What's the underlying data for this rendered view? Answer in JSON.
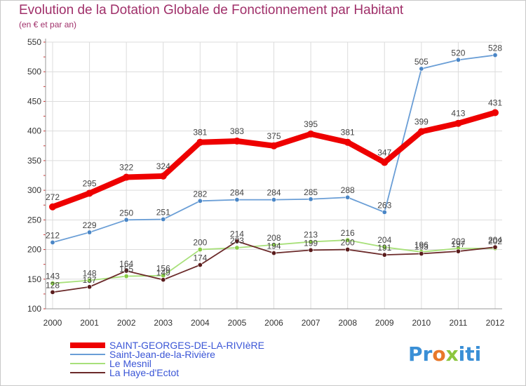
{
  "title": "Evolution de la Dotation Globale de Fonctionnement par Habitant",
  "subtitle": "(en € et par an)",
  "logo": {
    "text": "Proxiti",
    "parts": [
      "Pr",
      "o",
      "x",
      "iti"
    ]
  },
  "colors": {
    "title": "#a0306a",
    "grid": "#dcdcdc",
    "axis_text": "#333333",
    "label_text": "#444444"
  },
  "chart_data": {
    "type": "line",
    "title": "Evolution de la Dotation Globale de Fonctionnement par Habitant",
    "subtitle": "(en € et par an)",
    "xlabel": "",
    "ylabel": "",
    "x": [
      "2000",
      "2001",
      "2002",
      "2003",
      "2004",
      "2005",
      "2006",
      "2007",
      "2008",
      "2009",
      "2010",
      "2011",
      "2012"
    ],
    "ylim": [
      100,
      550
    ],
    "yticks": [
      100,
      150,
      200,
      250,
      300,
      350,
      400,
      450,
      500,
      550
    ],
    "grid": true,
    "legend_position": "bottom-left",
    "series": [
      {
        "name": "SAINT-GEORGES-DE-LA-RIVIèRE",
        "color": "#ee0000",
        "marker_color": "#ee0000",
        "width": "thick",
        "values": [
          272,
          295,
          322,
          324,
          381,
          383,
          375,
          395,
          381,
          347,
          399,
          413,
          431
        ]
      },
      {
        "name": "Saint-Jean-de-la-Rivière",
        "color": "#6a9ed6",
        "marker_color": "#4a86c6",
        "width": "thin",
        "values": [
          212,
          229,
          250,
          251,
          282,
          284,
          284,
          285,
          288,
          263,
          505,
          520,
          528
        ]
      },
      {
        "name": "Le Mesnil",
        "color": "#a8e07a",
        "marker_color": "#88cc44",
        "width": "thin",
        "values": [
          143,
          148,
          155,
          156,
          200,
          203,
          208,
          213,
          216,
          204,
          196,
          202,
          202
        ]
      },
      {
        "name": "La Haye-d'Ectot",
        "color": "#6b2a2a",
        "marker_color": "#5a1c1c",
        "width": "thin",
        "values": [
          128,
          137,
          164,
          149,
          174,
          214,
          194,
          199,
          200,
          191,
          193,
          197,
          204
        ]
      }
    ]
  }
}
